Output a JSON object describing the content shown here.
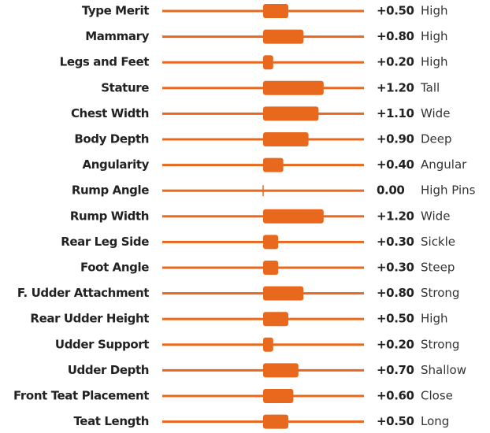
{
  "chart_data": {
    "type": "bar",
    "categories": [
      "Type Merit",
      "Mammary",
      "Legs and Feet",
      "Stature",
      "Chest Width",
      "Body Depth",
      "Angularity",
      "Rump Angle",
      "Rump Width",
      "Rear Leg Side",
      "Foot Angle",
      "F. Udder Attachment",
      "Rear Udder Height",
      "Udder Support",
      "Udder Depth",
      "Front Teat Placement",
      "Teat Length"
    ],
    "values": [
      0.5,
      0.8,
      0.2,
      1.2,
      1.1,
      0.9,
      0.4,
      0,
      1.2,
      0.3,
      0.3,
      0.8,
      0.5,
      0.2,
      0.7,
      0.6,
      0.5
    ],
    "value_labels": [
      "+0.50",
      "+0.80",
      "+0.20",
      "+1.20",
      "+1.10",
      "+0.90",
      "+0.40",
      "0.00",
      "+1.20",
      "+0.30",
      "+0.30",
      "+0.80",
      "+0.50",
      "+0.20",
      "+0.70",
      "+0.60",
      "+0.50"
    ],
    "descriptors": [
      "High",
      "High",
      "High",
      "Tall",
      "Wide",
      "Deep",
      "Angular",
      "High Pins",
      "Wide",
      "Sickle",
      "Steep",
      "Strong",
      "High",
      "Strong",
      "Shallow",
      "Close",
      "Long"
    ],
    "color": "#e8681e",
    "xlim": [
      -2,
      2
    ]
  }
}
